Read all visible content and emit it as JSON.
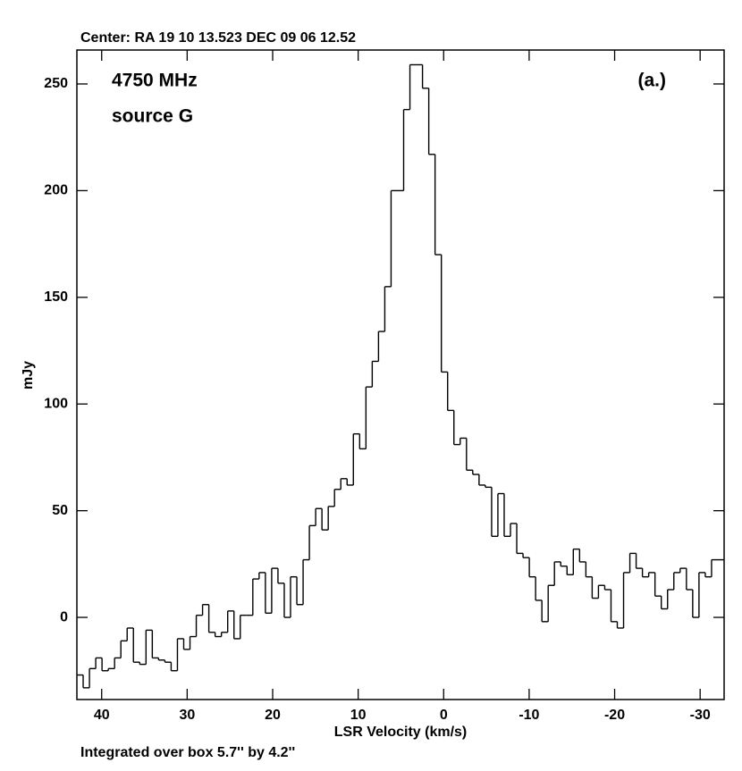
{
  "chart_data": {
    "type": "histogram",
    "title": "Center:  RA 19 10 13.523  DEC 09 06 12.52",
    "footer": "Integrated over box 5.7'' by 4.2''",
    "annotations": [
      "4750 MHz",
      "source G",
      "(a.)"
    ],
    "xlabel": "LSR Velocity (km/s)",
    "ylabel": "mJy",
    "bins": [
      42.9,
      42.165,
      41.43,
      40.695,
      39.96,
      39.225,
      38.49,
      37.755,
      37.02,
      36.285,
      35.55,
      34.815,
      34.08,
      33.345,
      32.61,
      31.875,
      31.14,
      30.405,
      29.67,
      28.935,
      28.2,
      27.465,
      26.73,
      25.995,
      25.26,
      24.525,
      23.79,
      23.055,
      22.32,
      21.585,
      20.85,
      20.115,
      19.38,
      18.645,
      17.91,
      17.175,
      16.44,
      15.705,
      14.97,
      14.235,
      13.5,
      12.765,
      12.03,
      11.295,
      10.56,
      9.825,
      9.09,
      8.355,
      7.62,
      6.885,
      6.15,
      5.415,
      4.68,
      3.945,
      3.21,
      2.475,
      1.74,
      1.005,
      0.27,
      -0.465,
      -1.2,
      -1.935,
      -2.67,
      -3.405,
      -4.14,
      -4.875,
      -5.61,
      -6.345,
      -7.08,
      -7.815,
      -8.55,
      -9.285,
      -10.02,
      -10.755,
      -11.49,
      -12.225,
      -12.96,
      -13.695,
      -14.43,
      -15.165,
      -15.9,
      -16.635,
      -17.37,
      -18.105,
      -18.84,
      -19.575,
      -20.31,
      -21.045,
      -21.78,
      -22.515,
      -23.25,
      -23.985,
      -24.72,
      -25.455,
      -26.19,
      -26.925,
      -27.66,
      -28.395,
      -29.13,
      -29.865,
      -30.6,
      -31.335,
      -32.07,
      -32.805
    ],
    "values": [
      -27,
      -33,
      -24,
      -19,
      -25,
      -24,
      -19,
      -11,
      -5,
      -21,
      -22,
      -6,
      -19,
      -20,
      -21,
      -25,
      -10,
      -15,
      -9,
      1,
      6,
      -7,
      -9,
      -7,
      3,
      -10,
      1,
      1,
      18,
      21,
      2,
      23,
      16,
      0,
      19,
      6,
      27,
      43,
      51,
      41,
      52,
      60,
      65,
      62,
      86,
      79,
      108,
      120,
      134,
      155,
      200,
      200,
      238,
      259,
      259,
      248,
      217,
      170,
      115,
      97,
      81,
      84,
      69,
      67,
      62,
      61,
      38,
      58,
      38,
      44,
      30,
      28,
      19,
      8,
      -2,
      15,
      26,
      24,
      20,
      32,
      26,
      19,
      9,
      15,
      13,
      -2,
      -5,
      21,
      30,
      23,
      19,
      21,
      10,
      4,
      13,
      21,
      23,
      13,
      0,
      21,
      19,
      27,
      27
    ],
    "color": "#000000",
    "xlim": [
      42.9,
      -32.805
    ],
    "xticks": [
      40,
      30,
      20,
      10,
      0,
      -10,
      -20,
      -30
    ],
    "ylim": [
      -38.5,
      265.9
    ],
    "yticks": [
      0,
      50,
      100,
      150,
      200,
      250
    ],
    "grid": false
  }
}
